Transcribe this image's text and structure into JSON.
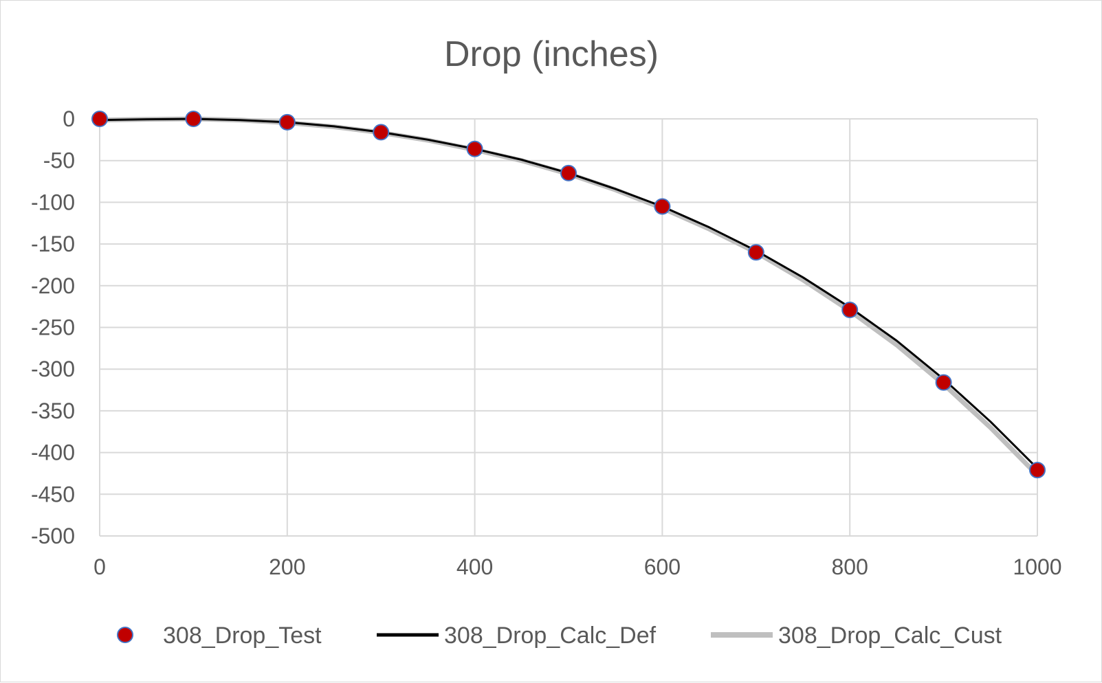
{
  "chart_data": {
    "type": "scatter",
    "title": "Drop (inches)",
    "xlabel": "",
    "ylabel": "",
    "xlim": [
      0,
      1000
    ],
    "ylim": [
      -500,
      0
    ],
    "x_ticks": [
      0,
      200,
      400,
      600,
      800,
      1000
    ],
    "y_ticks": [
      0,
      -50,
      -100,
      -150,
      -200,
      -250,
      -300,
      -350,
      -400,
      -450,
      -500
    ],
    "grid": true,
    "legend_position": "bottom",
    "series": [
      {
        "name": "308_Drop_Test",
        "kind": "markers",
        "color": "#c00000",
        "edge_color": "#4472c4",
        "x": [
          0,
          100,
          200,
          300,
          400,
          500,
          600,
          700,
          800,
          900,
          1000
        ],
        "y": [
          0,
          0,
          -4,
          -16,
          -36,
          -65,
          -105,
          -160,
          -229,
          -316,
          -421
        ]
      },
      {
        "name": "308_Drop_Calc_Def",
        "kind": "line",
        "color": "#000000",
        "x": [
          0,
          50,
          100,
          150,
          200,
          250,
          300,
          350,
          400,
          450,
          500,
          550,
          600,
          650,
          700,
          750,
          800,
          850,
          900,
          950,
          1000
        ],
        "y": [
          -1.5,
          -0.5,
          0,
          -1.5,
          -4,
          -9,
          -16,
          -25,
          -36,
          -49,
          -65,
          -84,
          -105,
          -130,
          -158,
          -190,
          -226,
          -266,
          -312,
          -363,
          -419
        ]
      },
      {
        "name": "308_Drop_Calc_Cust",
        "kind": "line",
        "color": "#bfbfbf",
        "x": [
          0,
          50,
          100,
          150,
          200,
          250,
          300,
          350,
          400,
          450,
          500,
          550,
          600,
          650,
          700,
          750,
          800,
          850,
          900,
          950,
          1000
        ],
        "y": [
          -1.5,
          -0.5,
          0,
          -1.5,
          -4.5,
          -9.5,
          -16.5,
          -25.5,
          -37,
          -50,
          -66,
          -85,
          -107,
          -132,
          -160,
          -193,
          -230,
          -271,
          -318,
          -370,
          -427
        ]
      }
    ]
  }
}
